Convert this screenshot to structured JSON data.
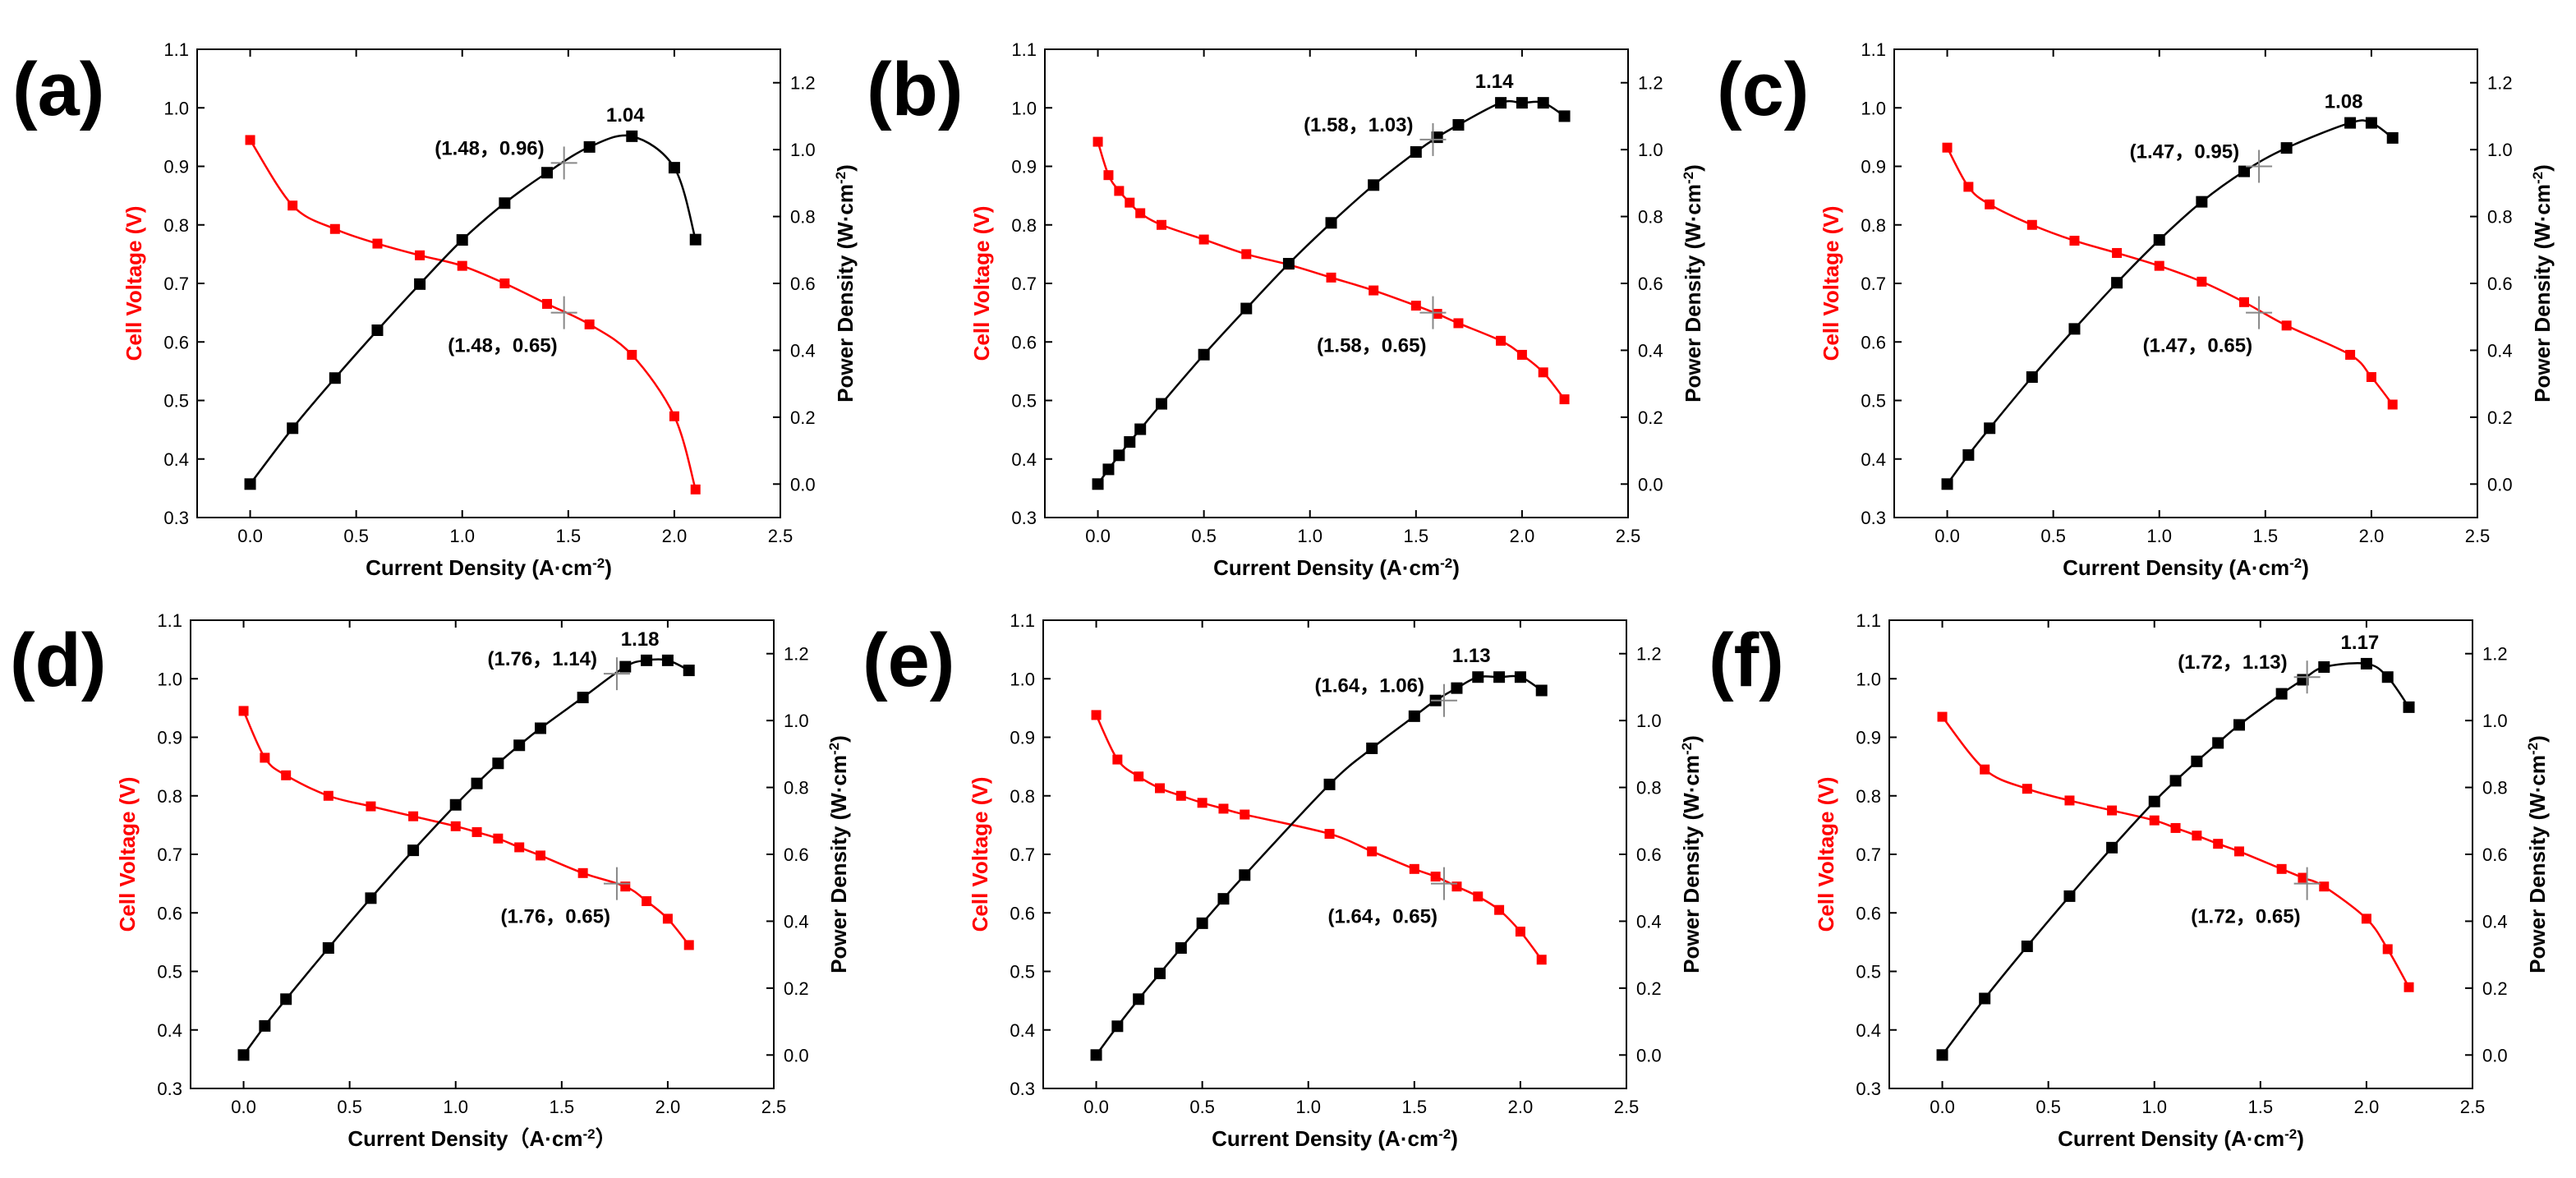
{
  "colors": {
    "voltage": "#ff0000",
    "power": "#000000",
    "crosshair": "#888888"
  },
  "axes": {
    "xlabel": "Current Density (A·cm⁻²)",
    "xlabel_d": "Current Density（A·cm⁻²）",
    "ylabel_left": "Cell Voltage (V)",
    "ylabel_right": "Power Density (W·cm⁻²)",
    "xlim": [
      -0.25,
      2.5
    ],
    "xticks": [
      "0.0",
      "0.5",
      "1.0",
      "1.5",
      "2.0",
      "2.5"
    ],
    "ylim_left": [
      0.3,
      1.1
    ],
    "yticks_left": [
      "0.3",
      "0.4",
      "0.5",
      "0.6",
      "0.7",
      "0.8",
      "0.9",
      "1.0",
      "1.1"
    ],
    "ylim_right": [
      -0.1,
      1.3
    ],
    "yticks_right": [
      "0.0",
      "0.2",
      "0.4",
      "0.6",
      "0.8",
      "1.0",
      "1.2"
    ]
  },
  "chart_data": [
    {
      "type": "line",
      "label": "(a)",
      "xlabel_variant": "xlabel",
      "voltage": {
        "x": [
          0.0,
          0.2,
          0.4,
          0.6,
          0.8,
          1.0,
          1.2,
          1.4,
          1.6,
          1.8,
          2.0,
          2.1
        ],
        "y": [
          0.945,
          0.833,
          0.793,
          0.768,
          0.748,
          0.73,
          0.7,
          0.665,
          0.63,
          0.578,
          0.473,
          0.348
        ]
      },
      "power": {
        "x": [
          0.0,
          0.2,
          0.4,
          0.6,
          0.8,
          1.0,
          1.2,
          1.4,
          1.6,
          1.8,
          2.0,
          2.1
        ],
        "y": [
          0.0,
          0.167,
          0.317,
          0.46,
          0.598,
          0.73,
          0.84,
          0.931,
          1.008,
          1.04,
          0.946,
          0.731
        ]
      },
      "peak_label": "1.04",
      "mark_power": {
        "x": 1.48,
        "y": 0.96,
        "text": "(1.48，0.96)"
      },
      "mark_voltage": {
        "x": 1.48,
        "y": 0.65,
        "text": "(1.48，0.65)"
      }
    },
    {
      "type": "line",
      "label": "(b)",
      "xlabel_variant": "xlabel",
      "voltage": {
        "x": [
          0.0,
          0.05,
          0.1,
          0.15,
          0.2,
          0.3,
          0.5,
          0.7,
          0.9,
          1.1,
          1.3,
          1.5,
          1.6,
          1.7,
          1.9,
          2.0,
          2.1,
          2.2
        ],
        "y": [
          0.942,
          0.885,
          0.858,
          0.838,
          0.82,
          0.8,
          0.775,
          0.75,
          0.732,
          0.71,
          0.688,
          0.662,
          0.648,
          0.632,
          0.602,
          0.578,
          0.548,
          0.502
        ]
      },
      "power": {
        "x": [
          0.0,
          0.05,
          0.1,
          0.15,
          0.2,
          0.3,
          0.5,
          0.7,
          0.9,
          1.1,
          1.3,
          1.5,
          1.6,
          1.7,
          1.9,
          2.0,
          2.1,
          2.2
        ],
        "y": [
          0.0,
          0.044,
          0.086,
          0.126,
          0.164,
          0.24,
          0.387,
          0.525,
          0.659,
          0.781,
          0.894,
          0.993,
          1.037,
          1.074,
          1.14,
          1.14,
          1.14,
          1.1
        ]
      },
      "peak_label": "1.14",
      "mark_power": {
        "x": 1.58,
        "y": 1.03,
        "text": "(1.58，1.03)"
      },
      "mark_voltage": {
        "x": 1.58,
        "y": 0.65,
        "text": "(1.58，0.65)"
      }
    },
    {
      "type": "line",
      "label": "(c)",
      "xlabel_variant": "xlabel",
      "voltage": {
        "x": [
          0.0,
          0.1,
          0.2,
          0.4,
          0.6,
          0.8,
          1.0,
          1.2,
          1.4,
          1.6,
          1.9,
          2.0,
          2.1
        ],
        "y": [
          0.932,
          0.865,
          0.835,
          0.8,
          0.773,
          0.752,
          0.73,
          0.703,
          0.668,
          0.628,
          0.578,
          0.54,
          0.493
        ]
      },
      "power": {
        "x": [
          0.0,
          0.1,
          0.2,
          0.4,
          0.6,
          0.8,
          1.0,
          1.2,
          1.4,
          1.6,
          1.9,
          2.0,
          2.1
        ],
        "y": [
          0.0,
          0.087,
          0.167,
          0.32,
          0.464,
          0.602,
          0.73,
          0.844,
          0.935,
          1.005,
          1.08,
          1.08,
          1.035
        ]
      },
      "peak_label": "1.08",
      "mark_power": {
        "x": 1.47,
        "y": 0.95,
        "text": "(1.47，0.95)"
      },
      "mark_voltage": {
        "x": 1.47,
        "y": 0.65,
        "text": "(1.47，0.65)"
      }
    },
    {
      "type": "line",
      "label": "(d)",
      "xlabel_variant": "xlabel_d",
      "voltage": {
        "x": [
          0.0,
          0.1,
          0.2,
          0.4,
          0.6,
          0.8,
          1.0,
          1.1,
          1.2,
          1.3,
          1.4,
          1.6,
          1.8,
          1.9,
          2.0,
          2.1
        ],
        "y": [
          0.945,
          0.865,
          0.835,
          0.8,
          0.782,
          0.765,
          0.748,
          0.738,
          0.727,
          0.712,
          0.698,
          0.668,
          0.645,
          0.62,
          0.59,
          0.545
        ]
      },
      "power": {
        "x": [
          0.0,
          0.1,
          0.2,
          0.4,
          0.6,
          0.8,
          1.0,
          1.1,
          1.2,
          1.3,
          1.4,
          1.6,
          1.8,
          1.9,
          2.0,
          2.1
        ],
        "y": [
          0.0,
          0.087,
          0.167,
          0.32,
          0.469,
          0.612,
          0.748,
          0.812,
          0.872,
          0.926,
          0.977,
          1.069,
          1.161,
          1.18,
          1.18,
          1.15
        ]
      },
      "peak_label": "1.18",
      "mark_power": {
        "x": 1.76,
        "y": 1.14,
        "text": "(1.76，1.14)"
      },
      "mark_voltage": {
        "x": 1.76,
        "y": 0.65,
        "text": "(1.76，0.65)"
      }
    },
    {
      "type": "line",
      "label": "(e)",
      "xlabel_variant": "xlabel",
      "voltage": {
        "x": [
          0.0,
          0.1,
          0.2,
          0.3,
          0.4,
          0.5,
          0.6,
          0.7,
          1.1,
          1.3,
          1.5,
          1.6,
          1.7,
          1.8,
          1.9,
          2.0,
          2.1
        ],
        "y": [
          0.938,
          0.862,
          0.833,
          0.813,
          0.8,
          0.788,
          0.778,
          0.768,
          0.735,
          0.705,
          0.675,
          0.662,
          0.645,
          0.628,
          0.605,
          0.568,
          0.52
        ]
      },
      "power": {
        "x": [
          0.0,
          0.1,
          0.2,
          0.3,
          0.4,
          0.5,
          0.6,
          0.7,
          1.1,
          1.3,
          1.5,
          1.6,
          1.7,
          1.8,
          1.9,
          2.0,
          2.1
        ],
        "y": [
          0.0,
          0.086,
          0.167,
          0.244,
          0.32,
          0.394,
          0.467,
          0.538,
          0.809,
          0.917,
          1.013,
          1.06,
          1.097,
          1.13,
          1.13,
          1.13,
          1.09
        ]
      },
      "peak_label": "1.13",
      "mark_power": {
        "x": 1.64,
        "y": 1.06,
        "text": "(1.64，1.06)"
      },
      "mark_voltage": {
        "x": 1.64,
        "y": 0.65,
        "text": "(1.64，0.65)"
      }
    },
    {
      "type": "line",
      "label": "(f)",
      "xlabel_variant": "xlabel",
      "voltage": {
        "x": [
          0.0,
          0.2,
          0.4,
          0.6,
          0.8,
          1.0,
          1.1,
          1.2,
          1.3,
          1.4,
          1.6,
          1.7,
          1.8,
          2.0,
          2.1,
          2.2
        ],
        "y": [
          0.935,
          0.845,
          0.812,
          0.792,
          0.775,
          0.758,
          0.745,
          0.732,
          0.718,
          0.705,
          0.675,
          0.66,
          0.645,
          0.59,
          0.538,
          0.473
        ]
      },
      "power": {
        "x": [
          0.0,
          0.2,
          0.4,
          0.6,
          0.8,
          1.0,
          1.1,
          1.2,
          1.3,
          1.4,
          1.6,
          1.7,
          1.8,
          2.0,
          2.1,
          2.2
        ],
        "y": [
          0.0,
          0.169,
          0.325,
          0.475,
          0.62,
          0.758,
          0.82,
          0.878,
          0.933,
          0.987,
          1.08,
          1.122,
          1.16,
          1.17,
          1.13,
          1.04
        ]
      },
      "peak_label": "1.17",
      "mark_power": {
        "x": 1.72,
        "y": 1.13,
        "text": "(1.72，1.13)"
      },
      "mark_voltage": {
        "x": 1.72,
        "y": 0.65,
        "text": "(1.72，0.65)"
      }
    }
  ]
}
